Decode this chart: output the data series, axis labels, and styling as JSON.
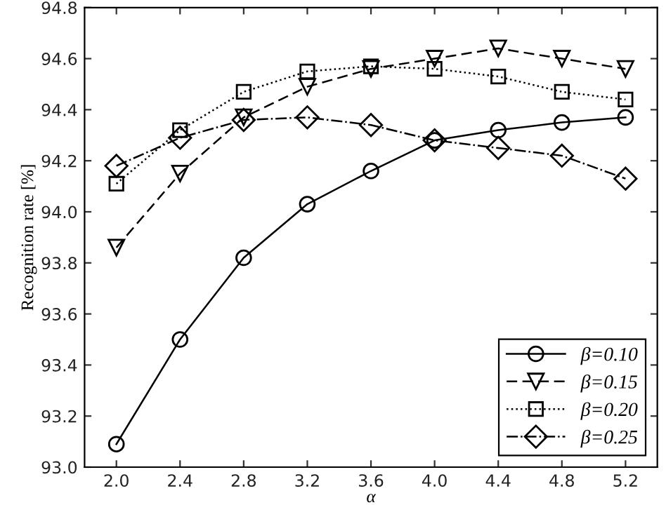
{
  "chart_data": {
    "type": "line",
    "xlabel": "α",
    "ylabel": "Recognition rate [%]",
    "x": [
      2.0,
      2.4,
      2.8,
      3.2,
      3.6,
      4.0,
      4.4,
      4.8,
      5.2
    ],
    "series": [
      {
        "name": "β=0.10",
        "color": "#000000",
        "marker": "circle",
        "line_style": "solid",
        "values": [
          93.09,
          93.5,
          93.82,
          94.03,
          94.16,
          94.28,
          94.32,
          94.35,
          94.37
        ]
      },
      {
        "name": "β=0.15",
        "color": "#000000",
        "marker": "triangle",
        "line_style": "dashed",
        "values": [
          93.86,
          94.15,
          94.37,
          94.49,
          94.56,
          94.6,
          94.64,
          94.6,
          94.56
        ]
      },
      {
        "name": "β=0.20",
        "color": "#000000",
        "marker": "square",
        "line_style": "dotted",
        "values": [
          94.11,
          94.32,
          94.47,
          94.55,
          94.57,
          94.56,
          94.53,
          94.47,
          94.44
        ]
      },
      {
        "name": "β=0.25",
        "color": "#000000",
        "marker": "diamond",
        "line_style": "dashdot",
        "values": [
          94.18,
          94.29,
          94.36,
          94.37,
          94.34,
          94.28,
          94.25,
          94.22,
          94.13
        ]
      }
    ],
    "xlim": [
      1.8,
      5.4
    ],
    "xticks": [
      {
        "value": 2.0,
        "label": "2.0"
      },
      {
        "value": 2.4,
        "label": "2.4"
      },
      {
        "value": 2.8,
        "label": "2.8"
      },
      {
        "value": 3.2,
        "label": "3.2"
      },
      {
        "value": 3.6,
        "label": "3.6"
      },
      {
        "value": 4.0,
        "label": "4.0"
      },
      {
        "value": 4.4,
        "label": "4.4"
      },
      {
        "value": 4.8,
        "label": "4.8"
      },
      {
        "value": 5.2,
        "label": "5.2"
      }
    ],
    "ylim": [
      93.0,
      94.8
    ],
    "yticks": [
      {
        "value": 93.0,
        "label": "93.0"
      },
      {
        "value": 93.2,
        "label": "93.2"
      },
      {
        "value": 93.4,
        "label": "93.4"
      },
      {
        "value": 93.6,
        "label": "93.6"
      },
      {
        "value": 93.8,
        "label": "93.8"
      },
      {
        "value": 94.0,
        "label": "94.0"
      },
      {
        "value": 94.2,
        "label": "94.2"
      },
      {
        "value": 94.4,
        "label": "94.4"
      },
      {
        "value": 94.6,
        "label": "94.6"
      },
      {
        "value": 94.8,
        "label": "94.8"
      }
    ],
    "grid": false,
    "legend": "bottom right"
  }
}
